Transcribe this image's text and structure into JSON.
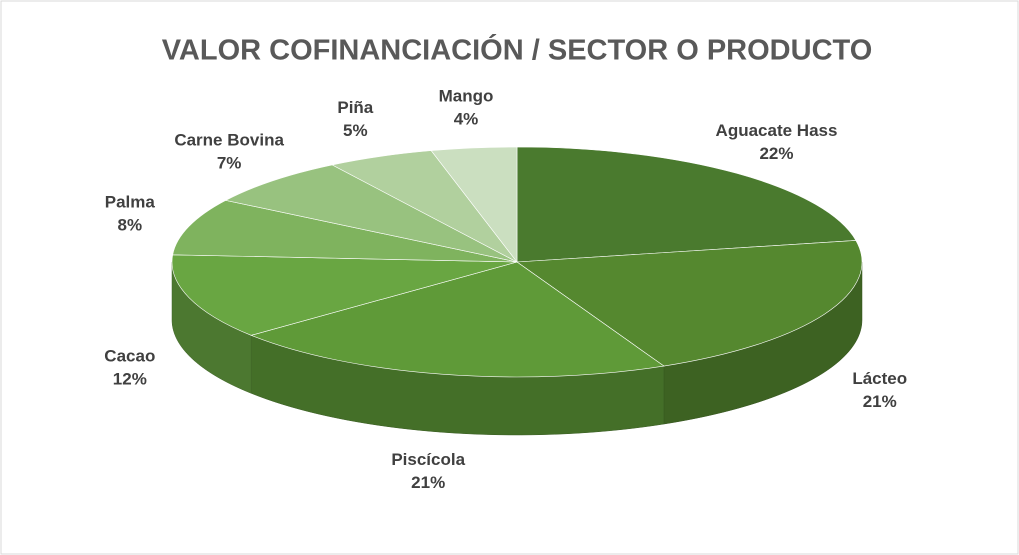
{
  "chart_data": {
    "type": "pie",
    "title": "VALOR COFINANCIACIÓN / SECTOR O PRODUCTO",
    "categories": [
      "Aguacate Hass",
      "Lácteo",
      "Piscícola",
      "Cacao",
      "Palma",
      "Carne Bovina",
      "Piña",
      "Mango"
    ],
    "values": [
      22,
      21,
      21,
      12,
      8,
      7,
      5,
      4
    ],
    "value_labels": [
      "22%",
      "21%",
      "21%",
      "12%",
      "8%",
      "7%",
      "5%",
      "4%"
    ],
    "colors": [
      "#4a7a2e",
      "#55882f",
      "#5f9a38",
      "#69a642",
      "#7fb35e",
      "#98c27f",
      "#b1d09e",
      "#cbdfc0"
    ]
  }
}
